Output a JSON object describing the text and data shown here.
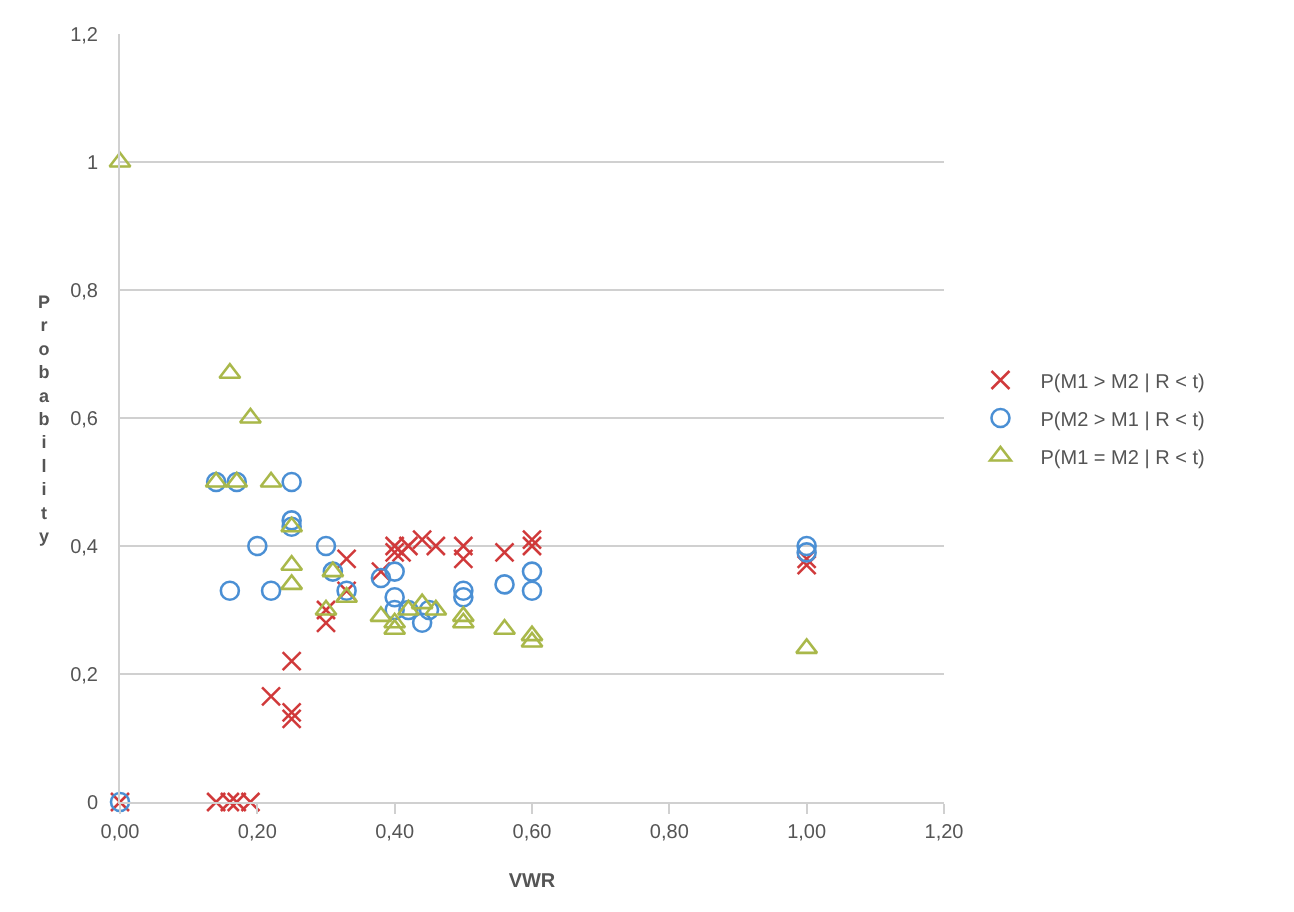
{
  "chart_data": {
    "type": "scatter",
    "xlabel": "VWR",
    "ylabel": "Probability",
    "xlim": [
      0,
      1.2
    ],
    "ylim": [
      0,
      1.2
    ],
    "xticks": [
      {
        "value": 0,
        "label": "0,00"
      },
      {
        "value": 0.2,
        "label": "0,20"
      },
      {
        "value": 0.4,
        "label": "0,40"
      },
      {
        "value": 0.6,
        "label": "0,60"
      },
      {
        "value": 0.8,
        "label": "0,80"
      },
      {
        "value": 1.0,
        "label": "1,00"
      },
      {
        "value": 1.2,
        "label": "1,20"
      }
    ],
    "yticks": [
      0,
      {
        "value": 0.2,
        "label": "0,2"
      },
      {
        "value": 0.4,
        "label": "0,4"
      },
      {
        "value": 0.6,
        "label": "0,6"
      },
      {
        "value": 0.8,
        "label": "0,8"
      },
      1,
      {
        "value": 1.2,
        "label": "1,2"
      }
    ],
    "grid": "y",
    "legend": "right",
    "series": [
      {
        "name": "P(M1 > M2 | R < t)",
        "color": "#d0393a",
        "marker": "cross",
        "x": [
          0,
          0.14,
          0.16,
          0.17,
          0.19,
          0.22,
          0.25,
          0.25,
          0.25,
          0.3,
          0.3,
          0.33,
          0.33,
          0.38,
          0.4,
          0.4,
          0.41,
          0.42,
          0.44,
          0.46,
          0.5,
          0.5,
          0.56,
          0.6,
          0.6,
          1.0,
          1.0
        ],
        "values": [
          0,
          0,
          0,
          0,
          0,
          0.165,
          0.14,
          0.13,
          0.22,
          0.28,
          0.3,
          0.38,
          0.33,
          0.36,
          0.39,
          0.4,
          0.39,
          0.4,
          0.41,
          0.4,
          0.4,
          0.38,
          0.39,
          0.4,
          0.41,
          0.37,
          0.38
        ]
      },
      {
        "name": "P(M2 > M1 | R < t)",
        "color": "#4a8fd4",
        "marker": "circle",
        "x": [
          0,
          0.14,
          0.17,
          0.25,
          0.25,
          0.25,
          0.2,
          0.16,
          0.22,
          0.3,
          0.31,
          0.33,
          0.38,
          0.4,
          0.4,
          0.4,
          0.42,
          0.44,
          0.45,
          0.5,
          0.5,
          0.56,
          0.6,
          0.6,
          1.0,
          1.0
        ],
        "values": [
          0,
          0.5,
          0.5,
          0.5,
          0.44,
          0.43,
          0.4,
          0.33,
          0.33,
          0.4,
          0.36,
          0.33,
          0.35,
          0.36,
          0.32,
          0.3,
          0.3,
          0.28,
          0.3,
          0.33,
          0.32,
          0.34,
          0.36,
          0.33,
          0.4,
          0.39
        ]
      },
      {
        "name": "P(M1 = M2 | R < t)",
        "color": "#a9b84a",
        "marker": "triangle",
        "x": [
          0,
          0.16,
          0.19,
          0.14,
          0.17,
          0.22,
          0.25,
          0.25,
          0.25,
          0.3,
          0.31,
          0.33,
          0.38,
          0.4,
          0.4,
          0.42,
          0.44,
          0.46,
          0.5,
          0.5,
          0.56,
          0.6,
          0.6,
          1.0
        ],
        "values": [
          1.0,
          0.67,
          0.6,
          0.5,
          0.5,
          0.5,
          0.43,
          0.37,
          0.34,
          0.3,
          0.36,
          0.32,
          0.29,
          0.28,
          0.27,
          0.3,
          0.31,
          0.3,
          0.29,
          0.28,
          0.27,
          0.26,
          0.25,
          0.24
        ]
      }
    ]
  }
}
